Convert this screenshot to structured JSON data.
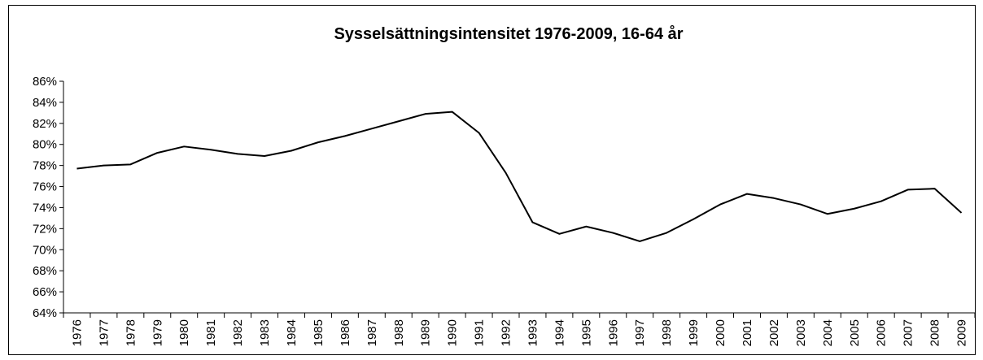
{
  "chart_data": {
    "type": "line",
    "title": "Sysselsättningsintensitet 1976-2009, 16-64 år",
    "categories": [
      "1976",
      "1977",
      "1978",
      "1979",
      "1980",
      "1981",
      "1982",
      "1983",
      "1984",
      "1985",
      "1986",
      "1987",
      "1988",
      "1989",
      "1990",
      "1991",
      "1992",
      "1993",
      "1994",
      "1995",
      "1996",
      "1997",
      "1998",
      "1999",
      "2000",
      "2001",
      "2002",
      "2003",
      "2004",
      "2005",
      "2006",
      "2007",
      "2008",
      "2009"
    ],
    "series": [
      {
        "color": "#000000",
        "values": [
          77.7,
          78.0,
          78.1,
          79.2,
          79.8,
          79.5,
          79.1,
          78.9,
          79.4,
          80.2,
          80.8,
          81.5,
          82.2,
          82.9,
          83.1,
          81.1,
          77.3,
          72.6,
          71.5,
          72.2,
          71.6,
          70.8,
          71.6,
          72.9,
          74.3,
          75.3,
          74.9,
          74.3,
          73.4,
          73.9,
          74.6,
          75.7,
          75.8,
          73.5
        ]
      }
    ],
    "ylim": [
      64,
      86
    ],
    "yticks": [
      {
        "value": 64,
        "label": "64%"
      },
      {
        "value": 66,
        "label": "66%"
      },
      {
        "value": 68,
        "label": "68%"
      },
      {
        "value": 70,
        "label": "70%"
      },
      {
        "value": 72,
        "label": "72%"
      },
      {
        "value": 74,
        "label": "74%"
      },
      {
        "value": 76,
        "label": "76%"
      },
      {
        "value": 78,
        "label": "78%"
      },
      {
        "value": 80,
        "label": "80%"
      },
      {
        "value": 82,
        "label": "82%"
      },
      {
        "value": 84,
        "label": "84%"
      },
      {
        "value": 86,
        "label": "86%"
      }
    ],
    "grid": false
  }
}
